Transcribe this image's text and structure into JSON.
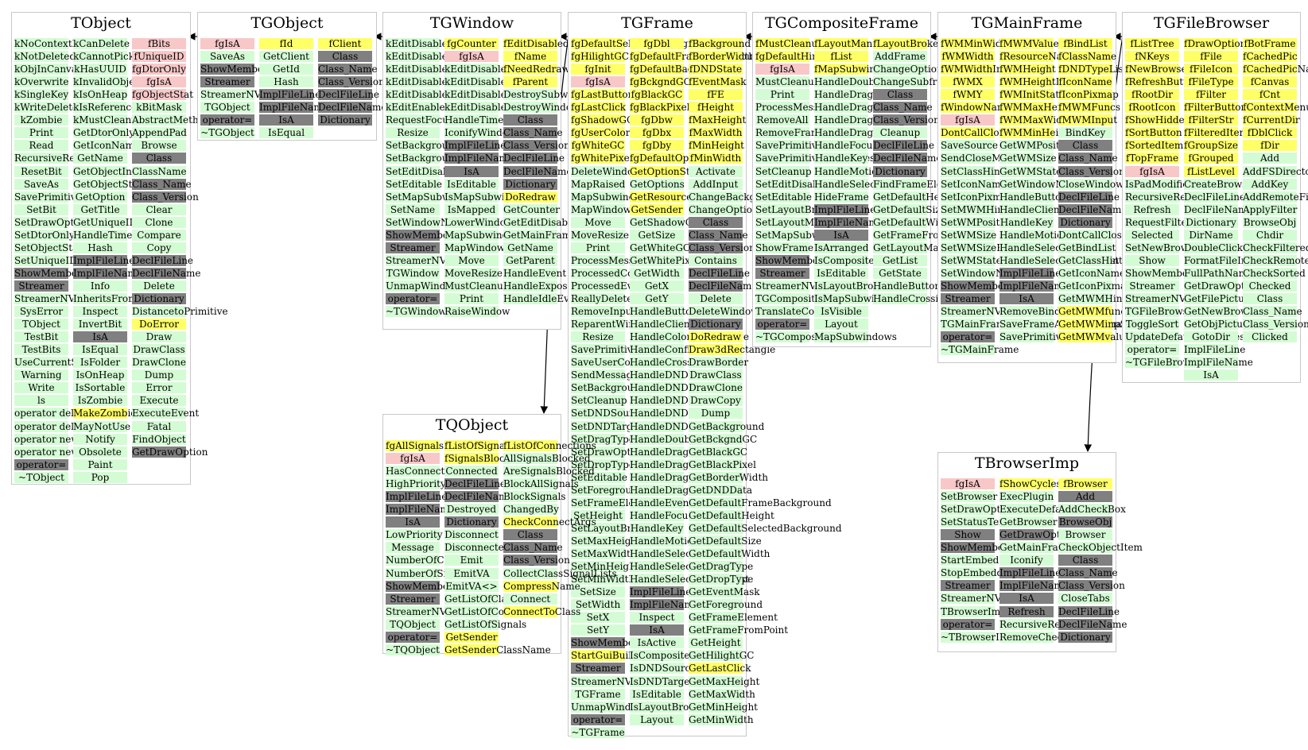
{
  "palette": {
    "method": "#d4fcd4",
    "data": "#ffff66",
    "private": "#f8c8c8",
    "system": "#808080",
    "edge": "#000000"
  },
  "edges": [
    {
      "from": "TGObject",
      "to": "TObject"
    },
    {
      "from": "TGWindow",
      "to": "TGObject"
    },
    {
      "from": "TGFrame",
      "to": "TGWindow"
    },
    {
      "from": "TGCompositeFrame",
      "to": "TGFrame"
    },
    {
      "from": "TGMainFrame",
      "to": "TGCompositeFrame"
    },
    {
      "from": "TGFileBrowser",
      "to": "TGMainFrame"
    },
    {
      "from": "TGFrame",
      "to": "TQObject"
    },
    {
      "from": "TGFileBrowser",
      "to": "TBrowserImp"
    }
  ],
  "classes": [
    {
      "name": "TObject",
      "columns": [
        [
          "m:kNoContextMenu",
          "m:kNotDeleted",
          "m:kObjInCanvas",
          "m:kOverwrite",
          "m:kSingleKey",
          "m:kWriteDelete",
          "m:kZombie",
          "m:Print",
          "m:Read",
          "m:RecursiveRemove",
          "m:ResetBit",
          "m:SaveAs",
          "m:SavePrimitive",
          "m:SetBit",
          "m:SetDrawOption",
          "m:SetDtorOnly",
          "m:SetObjectStat",
          "m:SetUniqueID",
          "s:ShowMembers",
          "s:Streamer",
          "m:StreamerNVirtual",
          "m:SysError",
          "m:TObject",
          "m:TestBit",
          "m:TestBits",
          "m:UseCurrentStyle",
          "m:Warning",
          "m:Write",
          "m:ls",
          "m:operator delete",
          "m:operator delete[]",
          "m:operator new",
          "m:operator new[]",
          "s:operator=",
          "m:~TObject"
        ],
        [
          "m:kCanDelete",
          "m:kCannotPick",
          "m:kHasUUID",
          "m:kInvalidObject",
          "m:kIsOnHeap",
          "m:kIsReferenced",
          "m:kMustCleanup",
          "m:GetDtorOnly",
          "m:GetIconName",
          "m:GetName",
          "m:GetObjectInfo",
          "m:GetObjectStat",
          "m:GetOption",
          "m:GetTitle",
          "m:GetUniqueID",
          "m:HandleTimer",
          "m:Hash",
          "s:ImplFileLine",
          "s:ImplFileName",
          "m:Info",
          "m:InheritsFrom",
          "m:Inspect",
          "m:InvertBit",
          "s:IsA",
          "m:IsEqual",
          "m:IsFolder",
          "m:IsOnHeap",
          "m:IsSortable",
          "m:IsZombie",
          "d:MakeZombie",
          "m:MayNotUse",
          "m:Notify",
          "m:Obsolete",
          "m:Paint",
          "m:Pop"
        ],
        [
          "p:fBits",
          "p:fUniqueID",
          "p:fgDtorOnly",
          "p:fgIsA",
          "p:fgObjectStat",
          "m:kBitMask",
          "m:AbstractMethod",
          "m:AppendPad",
          "m:Browse",
          "s:Class",
          "m:ClassName",
          "s:Class_Name",
          "s:Class_Version",
          "m:Clear",
          "m:Clone",
          "m:Compare",
          "m:Copy",
          "s:DeclFileLine",
          "s:DeclFileName",
          "m:Delete",
          "s:Dictionary",
          "m:DistancetoPrimitive",
          "d:DoError",
          "m:Draw",
          "m:DrawClass",
          "m:DrawClone",
          "m:Dump",
          "m:Error",
          "m:Execute",
          "m:ExecuteEvent",
          "m:Fatal",
          "m:FindObject",
          "s:GetDrawOption"
        ]
      ]
    },
    {
      "name": "TGObject",
      "columns": [
        [
          "p:fgIsA",
          "m:SaveAs",
          "s:ShowMembers",
          "s:Streamer",
          "m:StreamerNVirtual",
          "m:TGObject",
          "s:operator=",
          "m:~TGObject"
        ],
        [
          "d:fId",
          "m:GetClient",
          "m:GetId",
          "m:Hash",
          "s:ImplFileLine",
          "s:ImplFileName",
          "s:IsA",
          "m:IsEqual"
        ],
        [
          "d:fClient",
          "s:Class",
          "s:Class_Name",
          "s:Class_Version",
          "s:DeclFileLine",
          "s:DeclFileName",
          "s:Dictionary"
        ]
      ]
    },
    {
      "name": "TGWindow",
      "columns": [
        [
          "m:kEditDisableHeight",
          "m:kEditDisableKeyEnable",
          "m:kEditDisableLayout",
          "m:kEditDisableResize",
          "m:kEditDisableWidth",
          "m:kEditEnable",
          "m:RequestFocus",
          "m:Resize",
          "m:SetBackgroundColor",
          "m:SetBackgroundPixmap",
          "m:SetEditDisabled",
          "m:SetEditable",
          "m:SetMapSubwindows",
          "m:SetName",
          "m:SetWindowName",
          "s:ShowMembers",
          "s:Streamer",
          "m:StreamerNVirtual",
          "m:TGWindow",
          "m:UnmapWindow",
          "s:operator=",
          "m:~TGWindow"
        ],
        [
          "d:fgCounter",
          "p:fgIsA",
          "m:kEditDisable",
          "m:kEditDisableBtnEnable",
          "m:kEditDisableEvents",
          "m:kEditDisableGrab",
          "m:HandleTimer",
          "m:IconifyWindow",
          "s:ImplFileLine",
          "s:ImplFileName",
          "s:IsA",
          "m:IsEditable",
          "m:IsMapSubwindows",
          "m:IsMapped",
          "m:LowerWindow",
          "m:MapSubwindows",
          "m:MapWindow",
          "m:Move",
          "m:MoveResize",
          "m:MustCleanup",
          "m:Print",
          "m:RaiseWindow"
        ],
        [
          "d:fEditDisabled",
          "d:fName",
          "d:fNeedRedraw",
          "d:fParent",
          "m:DestroySubwindows",
          "m:DestroyWindow",
          "s:Class",
          "s:Class_Name",
          "s:Class_Version",
          "s:DeclFileLine",
          "s:DeclFileName",
          "s:Dictionary",
          "d:DoRedraw",
          "m:GetCounter",
          "m:GetEditDisabled",
          "m:GetMainFrame",
          "m:GetName",
          "m:GetParent",
          "m:HandleEvent",
          "m:HandleExpose",
          "m:HandleIdleEvent"
        ]
      ]
    },
    {
      "name": "TGFrame",
      "columns": [
        [
          "d:fgDefaultSelectedBackground",
          "d:fgHilightGC",
          "d:fgInit",
          "p:fgIsA",
          "d:fgLastButton",
          "d:fgLastClick",
          "d:fgShadowGC",
          "d:fgUserColor",
          "d:fgWhiteGC",
          "d:fgWhitePixel",
          "m:DeleteWindowCalled",
          "m:MapRaised",
          "m:MapSubwindows",
          "m:MapWindow",
          "m:Move",
          "m:MoveResize",
          "m:Print",
          "m:ProcessMessage",
          "m:ProcessedConfigure",
          "m:ProcessedEvent",
          "m:ReallyDelete",
          "m:RemoveInput",
          "m:ReparentWindow",
          "m:Resize",
          "m:SavePrimitive",
          "m:SaveUserColor",
          "m:SendMessage",
          "m:SetBackgroundColor",
          "m:SetCleanup",
          "m:SetDNDSource",
          "m:SetDNDTarget",
          "m:SetDragType",
          "m:SetDrawOption",
          "m:SetDropType",
          "m:SetEditable",
          "m:SetForegroundColor",
          "m:SetFrameElement",
          "m:SetHeight",
          "m:SetLayoutBroken",
          "m:SetMaxHeight",
          "m:SetMaxWidth",
          "m:SetMinHeight",
          "m:SetMinWidth",
          "m:SetSize",
          "m:SetWidth",
          "m:SetX",
          "m:SetY",
          "s:ShowMembers",
          "d:StartGuiBuilding",
          "s:Streamer",
          "m:StreamerNVirtual",
          "m:TGFrame",
          "m:UnmapWindow",
          "s:operator=",
          "m:~TGFrame"
        ],
        [
          "d:fgDbl",
          "d:fgDefaultFrameBackground",
          "d:fgDefaultBackground",
          "d:fgBckgndGC",
          "d:fgBlackGC",
          "d:fgBlackPixel",
          "d:fgDbw",
          "d:fgDbx",
          "d:fgDby",
          "d:fgDefaultOptions",
          "d:GetOptionString",
          "m:GetOptions",
          "d:GetResourcePool",
          "d:GetSender",
          "m:GetShadowGC",
          "m:GetSize",
          "m:GetWhiteGC",
          "m:GetWhitePixel",
          "m:GetWidth",
          "m:GetX",
          "m:GetY",
          "m:HandleButton",
          "m:HandleClientMessage",
          "m:HandleColormapChange",
          "m:HandleConfigureNotify",
          "m:HandleCrossing",
          "m:HandleDNDDrop",
          "m:HandleDNDEnter",
          "m:HandleDNDFinished",
          "m:HandleDNDLeave",
          "m:HandleDNDPosition",
          "m:HandleDoubleClick",
          "m:HandleDragDrop",
          "m:HandleDragEnter",
          "m:HandleDragLeave",
          "m:HandleDragMotion",
          "m:HandleEvent",
          "m:HandleFocusChange",
          "m:HandleKey",
          "m:HandleMotion",
          "m:HandleSelection",
          "m:HandleSelectionClear",
          "m:HandleSelectionRequest",
          "s:ImplFileLine",
          "s:ImplFileName",
          "m:Inspect",
          "s:IsA",
          "m:IsActive",
          "m:IsComposite",
          "m:IsDNDSource",
          "m:IsDNDTarget",
          "m:IsEditable",
          "m:IsLayoutBroken",
          "m:Layout"
        ],
        [
          "d:fBackground",
          "d:fBorderWidth",
          "d:fDNDState",
          "d:fEventMask",
          "d:fFE",
          "d:fHeight",
          "d:fMaxHeight",
          "d:fMaxWidth",
          "d:fMinHeight",
          "d:fMinWidth",
          "m:Activate",
          "m:AddInput",
          "m:ChangeBackground",
          "m:ChangeOptions",
          "s:Class",
          "s:Class_Name",
          "s:Class_Version",
          "m:Contains",
          "s:DeclFileLine",
          "s:DeclFileName",
          "m:Delete",
          "m:DeleteWindow",
          "s:Dictionary",
          "d:DoRedraw",
          "d:Draw3dRectangle",
          "m:DrawBorder",
          "m:DrawClass",
          "m:DrawClone",
          "m:DrawCopy",
          "m:Dump",
          "m:GetBackground",
          "m:GetBckgndGC",
          "m:GetBlackGC",
          "m:GetBlackPixel",
          "m:GetBorderWidth",
          "m:GetDNDData",
          "m:GetDefaultFrameBackground",
          "m:GetDefaultHeight",
          "m:GetDefaultSelectedBackground",
          "m:GetDefaultSize",
          "m:GetDefaultWidth",
          "m:GetDragType",
          "m:GetDropType",
          "m:GetEventMask",
          "m:GetForeground",
          "m:GetFrameElement",
          "m:GetFrameFromPoint",
          "m:GetHeight",
          "m:GetHilightGC",
          "d:GetLastClick",
          "m:GetMaxHeight",
          "m:GetMaxWidth",
          "m:GetMinHeight",
          "m:GetMinWidth"
        ]
      ]
    },
    {
      "name": "TGCompositeFrame",
      "columns": [
        [
          "d:fMustCleanup",
          "d:fgDefaultHints",
          "p:fgIsA",
          "m:MustCleanup",
          "m:Print",
          "m:ProcessMessage",
          "m:RemoveAll",
          "m:RemoveFrame",
          "m:SavePrimitive",
          "m:SavePrimitiveSubframes",
          "m:SetCleanup",
          "m:SetEditDisabled",
          "m:SetEditable",
          "m:SetLayoutBroken",
          "m:SetLayoutManager",
          "m:SetMapSubwindows",
          "m:ShowFrame",
          "s:ShowMembers",
          "s:Streamer",
          "m:StreamerNVirtual",
          "m:TGCompositeFrame",
          "m:TranslateCoordinates",
          "s:operator=",
          "m:~TGCompositeFrame"
        ],
        [
          "d:fLayoutManager",
          "d:fList",
          "d:fMapSubwindows",
          "m:HandleDoubleClick",
          "m:HandleDragDrop",
          "m:HandleDragEnter",
          "m:HandleDragLeave",
          "m:HandleDragMotion",
          "m:HandleFocusChange",
          "m:HandleKey",
          "m:HandleMotion",
          "m:HandleSelection",
          "m:HideFrame",
          "s:ImplFileLine",
          "s:ImplFileName",
          "s:IsA",
          "m:IsArranged",
          "m:IsComposite",
          "m:IsEditable",
          "m:IsLayoutBroken",
          "m:IsMapSubwindows",
          "m:IsVisible",
          "m:Layout",
          "m:MapSubwindows"
        ],
        [
          "d:fLayoutBroken",
          "m:AddFrame",
          "m:ChangeOptions",
          "m:ChangeSubframesBackground",
          "s:Class",
          "s:Class_Name",
          "s:Class_Version",
          "m:Cleanup",
          "s:DeclFileLine",
          "s:DeclFileName",
          "s:Dictionary",
          "m:FindFrameElement",
          "m:GetDefaultHeight",
          "m:GetDefaultSize",
          "m:GetDefaultWidth",
          "m:GetFrameFromPoint",
          "m:GetLayoutManager",
          "m:GetList",
          "m:GetState",
          "m:HandleButton",
          "m:HandleCrossing"
        ]
      ]
    },
    {
      "name": "TGMainFrame",
      "columns": [
        [
          "d:fWMMinWidth",
          "d:fWMWidth",
          "d:fWMWidthInc",
          "d:fWMX",
          "d:fWMY",
          "d:fWindowName",
          "p:fgIsA",
          "d:DontCallClose",
          "m:SaveSource",
          "m:SendCloseMessage",
          "m:SetClassHints",
          "m:SetIconName",
          "m:SetIconPixmap",
          "m:SetMWMHints",
          "m:SetWMPosition",
          "m:SetWMSize",
          "m:SetWMSizeHints",
          "m:SetWMState",
          "m:SetWindowName",
          "s:ShowMembers",
          "s:Streamer",
          "m:StreamerNVirtual",
          "m:TGMainFrame",
          "s:operator=",
          "m:~TGMainFrame"
        ],
        [
          "d:fMWMValue",
          "d:fResourceName",
          "d:fWMHeight",
          "d:fWMHeightInc",
          "d:fWMInitState",
          "d:fWMMaxHeight",
          "d:fWMMaxWidth",
          "d:fWMMinHeight",
          "m:GetWMPosition",
          "m:GetWMSize",
          "m:GetWMState",
          "m:GetWindowName",
          "m:HandleButton",
          "m:HandleClientMessage",
          "m:HandleKey",
          "m:HandleMotion",
          "m:HandleSelection",
          "m:HandleSelectionRequest",
          "s:ImplFileLine",
          "s:ImplFileName",
          "s:IsA",
          "m:RemoveBind",
          "m:SaveFrameAsCodeOrImage",
          "m:SavePrimitive"
        ],
        [
          "d:fBindList",
          "d:fClassName",
          "d:fDNDTypeList",
          "d:fIconName",
          "d:fIconPixmap",
          "d:fMWMFuncs",
          "d:fMWMInput",
          "m:BindKey",
          "s:Class",
          "s:Class_Name",
          "s:Class_Version",
          "m:CloseWindow",
          "s:DeclFileLine",
          "s:DeclFileName",
          "s:Dictionary",
          "m:DontCallClose",
          "m:GetBindList",
          "m:GetClassHints",
          "m:GetIconName",
          "m:GetIconPixmap",
          "m:GetMWMHints",
          "d:GetMWMfuncString",
          "d:GetMWMinpString",
          "d:GetMWMvalueString"
        ]
      ]
    },
    {
      "name": "TGFileBrowser",
      "columns": [
        [
          "d:fListTree",
          "d:fNKeys",
          "d:fNewBrowser",
          "d:fRefreshButton",
          "d:fRootDir",
          "d:fRootIcon",
          "d:fShowHidden",
          "d:fSortButton",
          "d:fSortedItems",
          "d:fTopFrame",
          "p:fgIsA",
          "m:IsPadModified",
          "m:RecursiveRemove",
          "m:Refresh",
          "m:RequestFilter",
          "m:Selected",
          "m:SetNewBrowser",
          "m:Show",
          "m:ShowMembers",
          "m:Streamer",
          "m:StreamerNVirtual",
          "m:TGFileBrowser",
          "m:ToggleSort",
          "m:UpdateDefaultAttributes",
          "m:operator=",
          "m:~TGFileBrowser"
        ],
        [
          "d:fDrawOption",
          "d:fFile",
          "d:fFileIcon",
          "d:fFileType",
          "d:fFilter",
          "d:fFilterButton",
          "d:fFilterStr",
          "d:fFilteredItems",
          "d:fGroupSize",
          "d:fGrouped",
          "d:fListLevel",
          "m:CreateBrowser",
          "m:DeclFileLine",
          "m:DeclFileName",
          "m:Dictionary",
          "m:DirName",
          "m:DoubleClicked",
          "m:FormatFileInfo",
          "m:FullPathName",
          "m:GetDrawOption",
          "m:GetFilePictures",
          "m:GetNewBrowser",
          "m:GetObjPicture",
          "m:GotoDir",
          "m:ImplFileLine",
          "m:ImplFileName",
          "m:IsA"
        ],
        [
          "d:fBotFrame",
          "d:fCachedPic",
          "d:fCachedPicName",
          "d:fCanvas",
          "d:fCnt",
          "d:fContextMenu",
          "d:fCurrentDir",
          "d:fDblClick",
          "d:fDir",
          "m:Add",
          "m:AddFSDirectory",
          "m:AddKey",
          "m:AddRemoteFile",
          "m:ApplyFilter",
          "m:BrowseObj",
          "m:Chdir",
          "m:CheckFiltered",
          "m:CheckRemote",
          "m:CheckSorted",
          "m:Checked",
          "m:Class",
          "m:Class_Name",
          "m:Class_Version",
          "m:Clicked"
        ]
      ]
    },
    {
      "name": "TQObject",
      "columns": [
        [
          "d:fgAllSignalsBlocked",
          "p:fgIsA",
          "m:HasConnection",
          "m:HighPriority",
          "s:ImplFileLine",
          "s:ImplFileName",
          "s:IsA",
          "m:LowPriority",
          "m:Message",
          "m:NumberOfConnections",
          "m:NumberOfSignals",
          "s:ShowMembers",
          "s:Streamer",
          "m:StreamerNVirtual",
          "m:TQObject",
          "s:operator=",
          "m:~TQObject"
        ],
        [
          "d:fListOfSignals",
          "d:fSignalsBlocked",
          "m:Connected",
          "s:DeclFileLine",
          "s:DeclFileName",
          "m:Destroyed",
          "s:Dictionary",
          "m:Disconnect",
          "m:Disconnected",
          "m:Emit",
          "m:EmitVA",
          "m:EmitVA<>",
          "m:GetListOfClassSignals",
          "m:GetListOfConnections",
          "m:GetListOfSignals",
          "d:GetSender",
          "d:GetSenderClassName"
        ],
        [
          "d:fListOfConnections",
          "m:AllSignalsBlocked",
          "m:AreSignalsBlocked",
          "m:BlockAllSignals",
          "m:BlockSignals",
          "m:ChangedBy",
          "d:CheckConnectArgs",
          "s:Class",
          "s:Class_Name",
          "s:Class_Version",
          "m:CollectClassSignalLists",
          "d:CompressName",
          "m:Connect",
          "d:ConnectToClass"
        ]
      ]
    },
    {
      "name": "TBrowserImp",
      "columns": [
        [
          "p:fgIsA",
          "m:SetBrowser",
          "m:SetDrawOption",
          "m:SetStatusText",
          "s:Show",
          "s:ShowMembers",
          "m:StartEmbedding",
          "m:StopEmbedding",
          "s:Streamer",
          "m:StreamerNVirtual",
          "m:TBrowserImp",
          "s:operator=",
          "m:~TBrowserImp"
        ],
        [
          "d:fShowCycles",
          "m:ExecPlugin",
          "m:ExecuteDefaultAction",
          "m:GetBrowser",
          "s:GetDrawOption",
          "m:GetMainFrame",
          "m:Iconify",
          "s:ImplFileLine",
          "s:ImplFileName",
          "s:IsA",
          "s:Refresh",
          "m:RecursiveRemove",
          "m:RemoveCheckBox"
        ],
        [
          "d:fBrowser",
          "s:Add",
          "m:AddCheckBox",
          "s:BrowseObj",
          "m:Browser",
          "m:CheckObjectItem",
          "s:Class",
          "s:Class_Name",
          "s:Class_Version",
          "m:CloseTabs",
          "s:DeclFileLine",
          "s:DeclFileName",
          "s:Dictionary"
        ]
      ]
    }
  ]
}
